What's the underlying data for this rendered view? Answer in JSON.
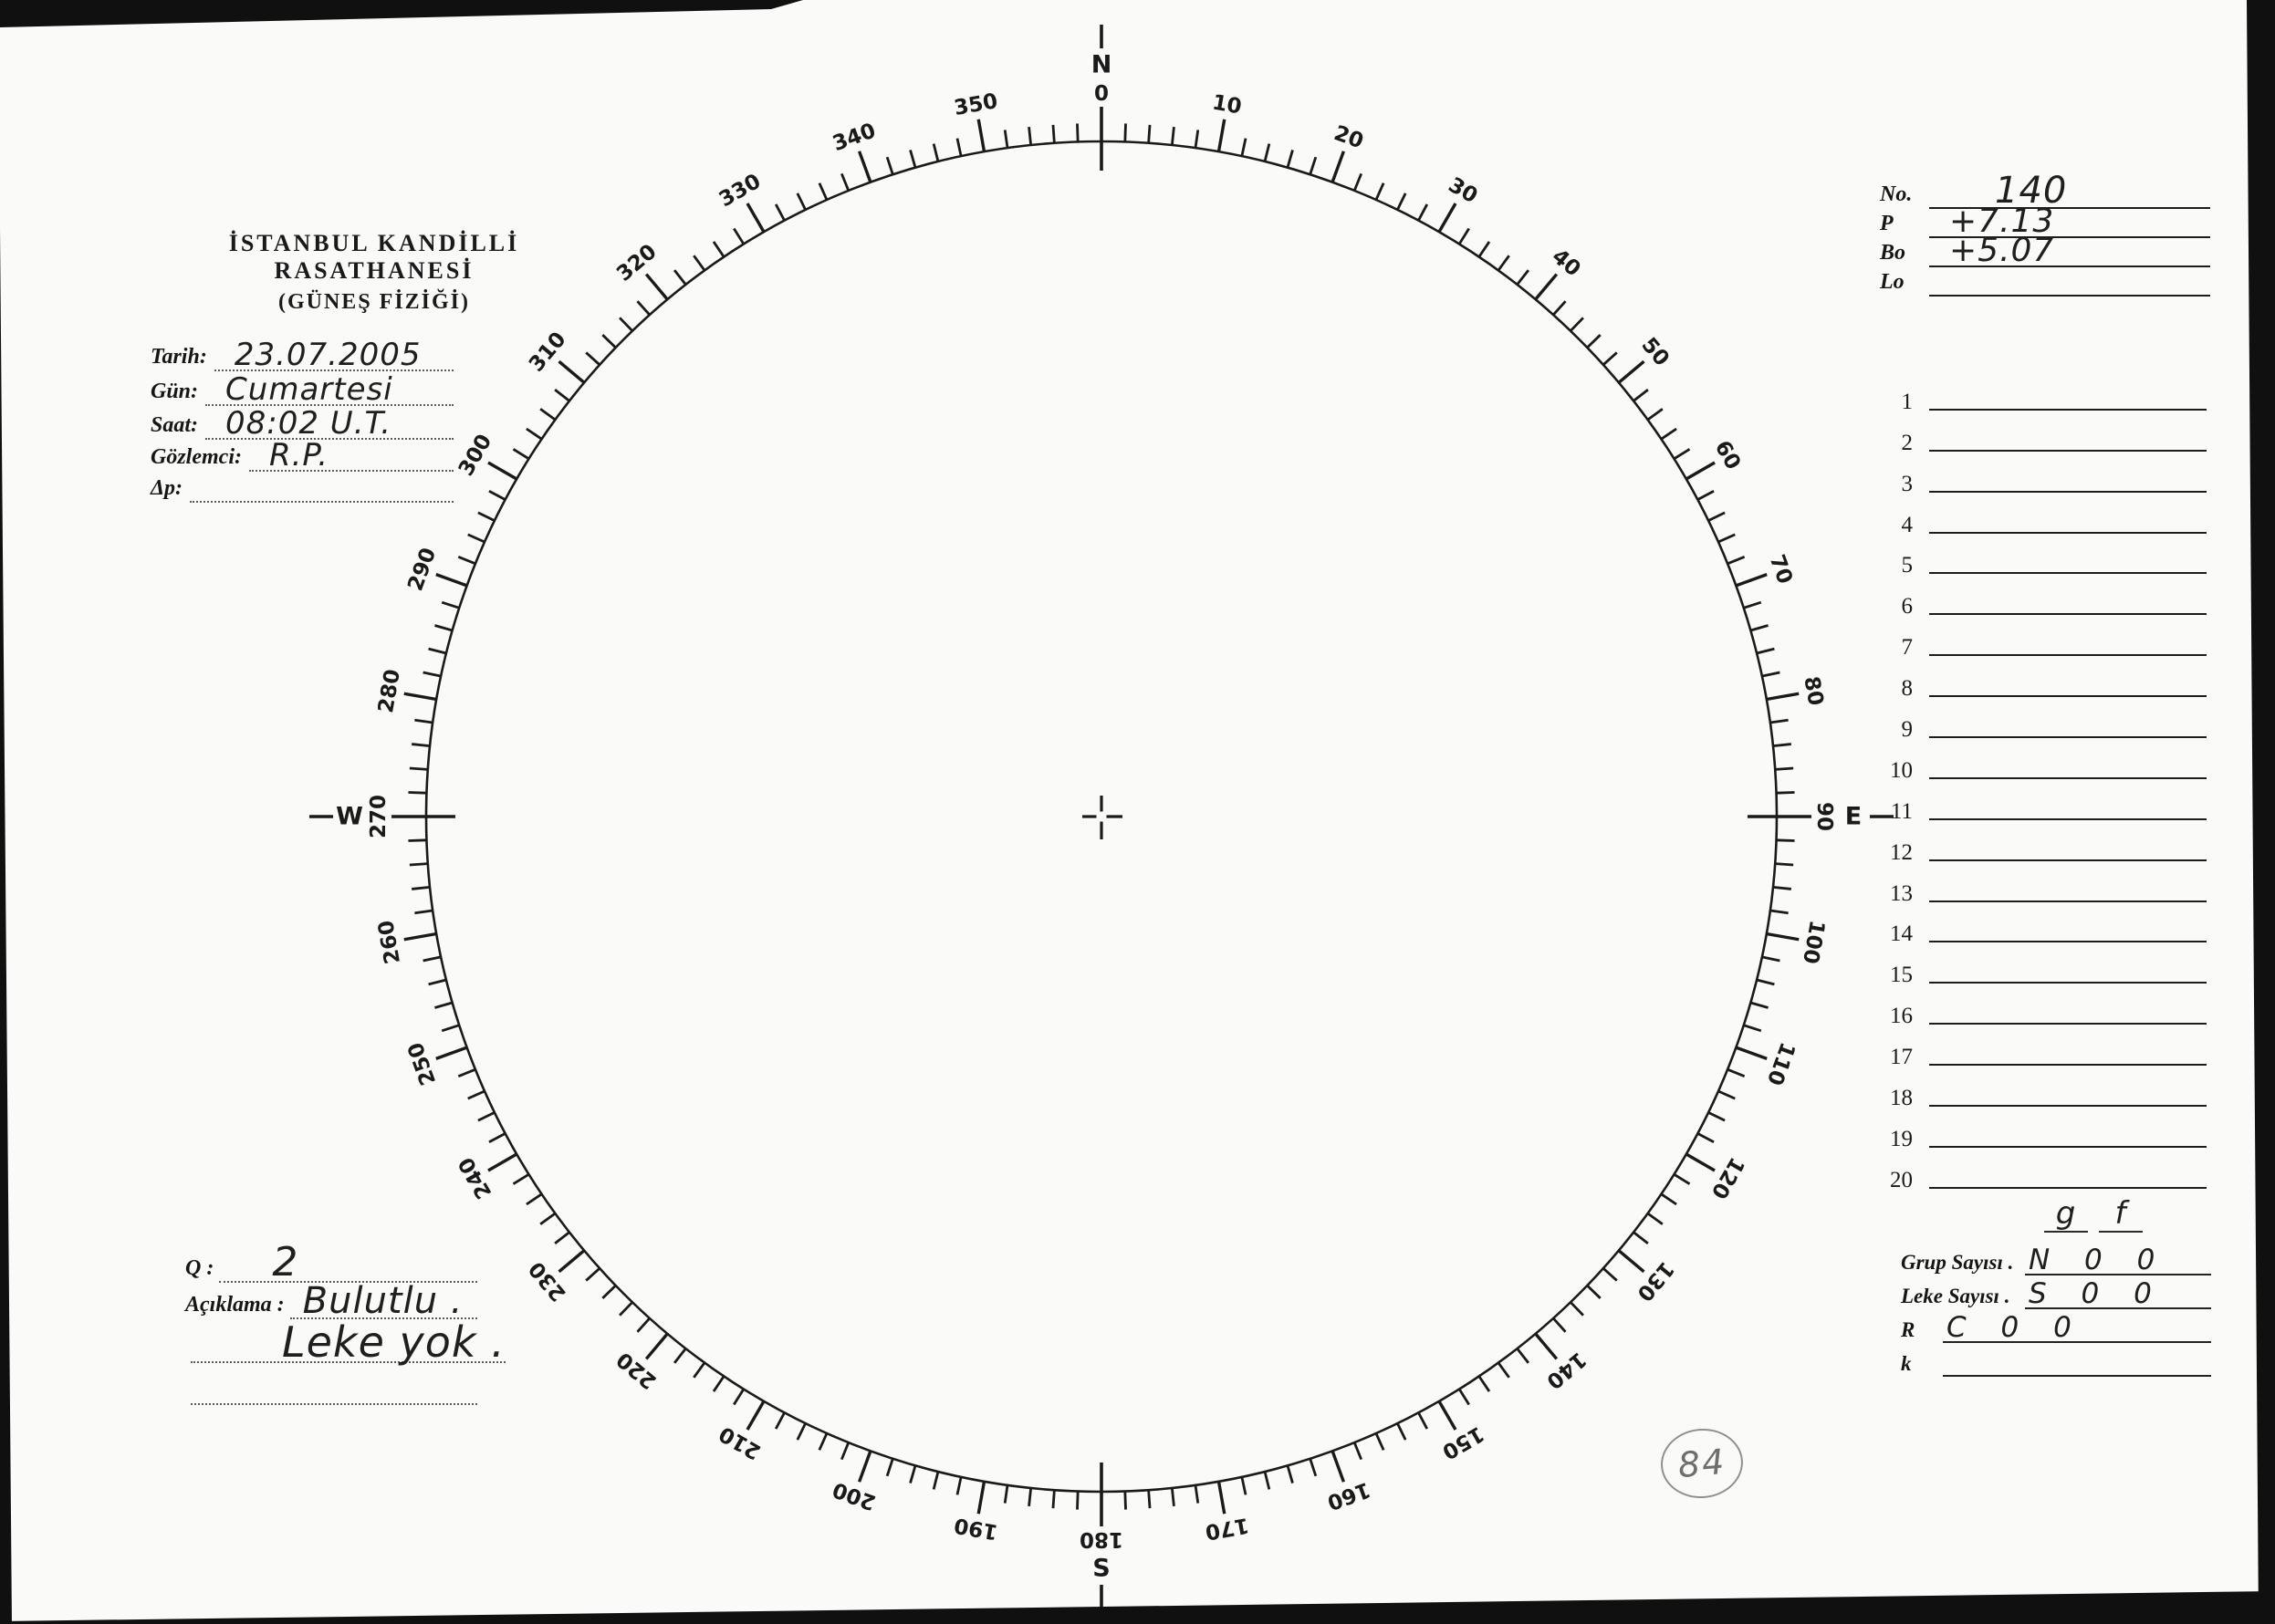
{
  "header": {
    "title": "İSTANBUL KANDİLLİ RASATHANESİ",
    "subtitle": "(GÜNEŞ FİZİĞİ)"
  },
  "fields": [
    {
      "label": "Tarih:",
      "value": "23.07.2005"
    },
    {
      "label": "Gün:",
      "value": "Cumartesi"
    },
    {
      "label": "Saat:",
      "value": "08:02 U.T."
    },
    {
      "label": "Gözlemci:",
      "value": "R.P."
    },
    {
      "label": "Δp:",
      "value": ""
    }
  ],
  "quality": {
    "q_label": "Q :",
    "q_value": "2",
    "aciklama_label": "Açıklama :",
    "aciklama_line1": "Bulutlu .",
    "aciklama_line2": "Leke yok ."
  },
  "params": [
    {
      "label": "No.",
      "value": "140"
    },
    {
      "label": "P",
      "value": "+7.13"
    },
    {
      "label": "Bo",
      "value": "+5.07"
    },
    {
      "label": "Lo",
      "value": ""
    }
  ],
  "group_list": {
    "items": [
      {
        "num": "1",
        "value": ""
      },
      {
        "num": "2",
        "value": ""
      },
      {
        "num": "3",
        "value": ""
      },
      {
        "num": "4",
        "value": ""
      },
      {
        "num": "5",
        "value": ""
      },
      {
        "num": "6",
        "value": ""
      },
      {
        "num": "7",
        "value": ""
      },
      {
        "num": "8",
        "value": ""
      },
      {
        "num": "9",
        "value": ""
      },
      {
        "num": "10",
        "value": ""
      },
      {
        "num": "11",
        "value": ""
      },
      {
        "num": "12",
        "value": ""
      },
      {
        "num": "13",
        "value": ""
      },
      {
        "num": "14",
        "value": ""
      },
      {
        "num": "15",
        "value": ""
      },
      {
        "num": "16",
        "value": ""
      },
      {
        "num": "17",
        "value": ""
      },
      {
        "num": "18",
        "value": ""
      },
      {
        "num": "19",
        "value": ""
      },
      {
        "num": "20",
        "value": ""
      }
    ]
  },
  "counts": {
    "col_g": "g",
    "col_f": "f",
    "rows": [
      {
        "label": "Grup Sayısı .",
        "value": "N 0 0"
      },
      {
        "label": "Leke Sayısı .",
        "value": "S 0 0"
      },
      {
        "label": "R",
        "value": "C 0 0"
      },
      {
        "label": "k",
        "value": ""
      }
    ]
  },
  "page_number": "84",
  "disk": {
    "type": "polar-degree-grid",
    "tick_minor_step_deg": 2,
    "tick_major_step_deg": 10,
    "degree_labels": [
      {
        "deg": 0,
        "text": "0"
      },
      {
        "deg": 10,
        "text": "10"
      },
      {
        "deg": 20,
        "text": "20"
      },
      {
        "deg": 30,
        "text": "30"
      },
      {
        "deg": 40,
        "text": "40"
      },
      {
        "deg": 50,
        "text": "50"
      },
      {
        "deg": 60,
        "text": "60"
      },
      {
        "deg": 70,
        "text": "70"
      },
      {
        "deg": 80,
        "text": "80"
      },
      {
        "deg": 90,
        "text": "90"
      },
      {
        "deg": 100,
        "text": "100"
      },
      {
        "deg": 110,
        "text": "110"
      },
      {
        "deg": 120,
        "text": "120"
      },
      {
        "deg": 130,
        "text": "130"
      },
      {
        "deg": 140,
        "text": "140"
      },
      {
        "deg": 150,
        "text": "150"
      },
      {
        "deg": 160,
        "text": "160"
      },
      {
        "deg": 170,
        "text": "170"
      },
      {
        "deg": 180,
        "text": "180"
      },
      {
        "deg": 190,
        "text": "190"
      },
      {
        "deg": 200,
        "text": "200"
      },
      {
        "deg": 210,
        "text": "210"
      },
      {
        "deg": 220,
        "text": "220"
      },
      {
        "deg": 230,
        "text": "230"
      },
      {
        "deg": 240,
        "text": "240"
      },
      {
        "deg": 250,
        "text": "250"
      },
      {
        "deg": 260,
        "text": "260"
      },
      {
        "deg": 270,
        "text": "270"
      },
      {
        "deg": 280,
        "text": "280"
      },
      {
        "deg": 290,
        "text": "290"
      },
      {
        "deg": 300,
        "text": "300"
      },
      {
        "deg": 310,
        "text": "310"
      },
      {
        "deg": 320,
        "text": "320"
      },
      {
        "deg": 330,
        "text": "330"
      },
      {
        "deg": 340,
        "text": "340"
      },
      {
        "deg": 350,
        "text": "350"
      }
    ],
    "cardinals": [
      {
        "deg": 0,
        "letter": "N"
      },
      {
        "deg": 90,
        "letter": "E"
      },
      {
        "deg": 180,
        "letter": "S"
      },
      {
        "deg": 270,
        "letter": "W"
      }
    ],
    "center_marker": "crosshair",
    "spots": []
  },
  "ink_color": "#1a1a1a",
  "pencil_color": "#6e6e6e"
}
